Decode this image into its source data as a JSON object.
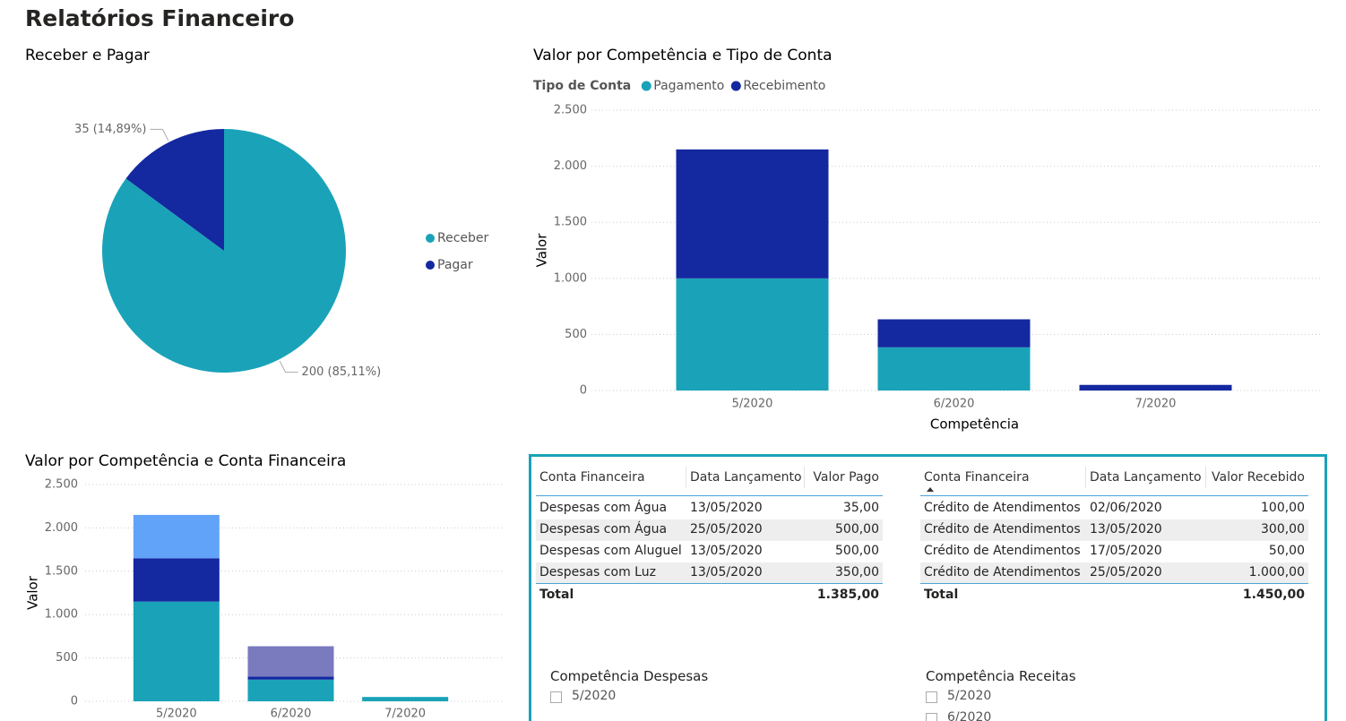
{
  "title": "Relatórios Financeiro",
  "chart_data": [
    {
      "type": "pie",
      "title": "Receber e Pagar",
      "categories": [
        "Receber",
        "Pagar"
      ],
      "values": [
        200,
        35
      ],
      "value_labels": [
        "200 (85,11%)",
        "35 (14,89%)"
      ],
      "colors": [
        "#1aa3b8",
        "#1428a0"
      ],
      "legend": "right"
    },
    {
      "type": "stacked_bar",
      "title": "Valor por Competência e Tipo de Conta",
      "legend_title": "Tipo de Conta",
      "legend": "top-left",
      "categories": [
        "5/2020",
        "6/2020",
        "7/2020"
      ],
      "series": [
        {
          "name": "Pagamento",
          "color": "#1aa3b8",
          "values": [
            1000,
            385,
            0
          ]
        },
        {
          "name": "Recebimento",
          "color": "#1428a0",
          "values": [
            1150,
            250,
            50
          ]
        }
      ],
      "ylim": [
        0,
        2500
      ],
      "yticks": [
        0,
        500,
        {
          "value": 1000,
          "label": "1.000"
        },
        {
          "value": 1500,
          "label": "1.500"
        },
        {
          "value": 2000,
          "label": "2.000"
        },
        {
          "value": 2500,
          "label": "2.500"
        }
      ],
      "xlabel": "Competência",
      "ylabel": "Valor",
      "grid": true
    },
    {
      "type": "stacked_bar",
      "title": "Valor por Competência e Conta Financeira",
      "categories": [
        "5/2020",
        "6/2020",
        "7/2020"
      ],
      "series": [
        {
          "color": "#1aa3b8",
          "values": [
            1150,
            250,
            50
          ]
        },
        {
          "color": "#1428a0",
          "values": [
            500,
            35,
            0
          ]
        },
        {
          "color": "#62a3fa",
          "values": [
            500,
            0,
            0
          ]
        },
        {
          "color": "#7a7abf",
          "values": [
            0,
            350,
            0
          ]
        }
      ],
      "ylim": [
        0,
        2500
      ],
      "yticks": [
        0,
        500,
        {
          "value": 1000,
          "label": "1.000"
        },
        {
          "value": 1500,
          "label": "1.500"
        },
        {
          "value": 2000,
          "label": "2.000"
        },
        {
          "value": 2500,
          "label": "2.500"
        }
      ],
      "ylabel": "Valor",
      "grid": true
    }
  ],
  "tables": [
    {
      "columns": [
        "Conta Financeira",
        "Data Lançamento",
        "Valor Pago"
      ],
      "rows": [
        [
          "Despesas com Água",
          "13/05/2020",
          "35,00"
        ],
        [
          "Despesas com Água",
          "25/05/2020",
          "500,00"
        ],
        [
          "Despesas com Aluguel",
          "13/05/2020",
          "500,00"
        ],
        [
          "Despesas com Luz",
          "13/05/2020",
          "350,00"
        ]
      ],
      "total": {
        "label": "Total",
        "value": "1.385,00"
      }
    },
    {
      "columns": [
        "Conta Financeira",
        "Data Lançamento",
        "Valor Recebido"
      ],
      "rows": [
        [
          "Crédito de Atendimentos",
          "02/06/2020",
          "100,00"
        ],
        [
          "Crédito de Atendimentos",
          "13/05/2020",
          "300,00"
        ],
        [
          "Crédito de Atendimentos",
          "17/05/2020",
          "50,00"
        ],
        [
          "Crédito de Atendimentos",
          "25/05/2020",
          "1.000,00"
        ]
      ],
      "total": {
        "label": "Total",
        "value": "1.450,00"
      }
    }
  ],
  "slicers": [
    {
      "title": "Competência Despesas",
      "items": [
        "5/2020"
      ]
    },
    {
      "title": "Competência Receitas",
      "items": [
        "5/2020",
        "6/2020"
      ]
    }
  ]
}
